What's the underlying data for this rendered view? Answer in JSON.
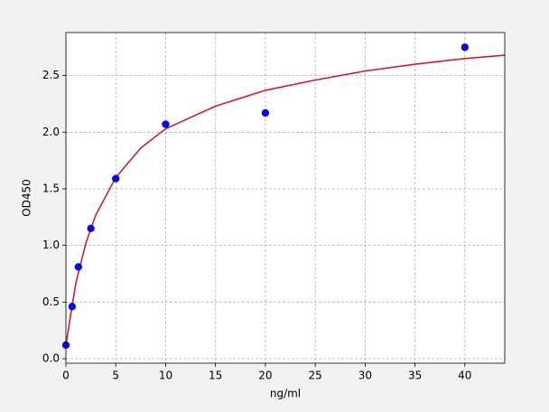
{
  "chart_data": {
    "type": "scatter",
    "xlabel": "ng/ml",
    "ylabel": "OD450",
    "xlim": [
      0,
      44
    ],
    "ylim": [
      -0.04,
      2.88
    ],
    "xticks": [
      0,
      5,
      10,
      15,
      20,
      25,
      30,
      35,
      40
    ],
    "yticks": [
      {
        "value": 0,
        "label": "0.0"
      },
      0.5,
      {
        "value": 1,
        "label": "1.0"
      },
      1.5,
      {
        "value": 2,
        "label": "2.0"
      },
      2.5
    ],
    "grid": true,
    "series": [
      {
        "type": "line",
        "color": "#c8202a",
        "x": [
          0,
          0.5,
          1,
          2,
          3,
          5,
          7.5,
          10,
          15,
          20,
          25,
          30,
          35,
          40,
          44
        ],
        "values": [
          0.12,
          0.4,
          0.67,
          1.02,
          1.27,
          1.6,
          1.86,
          2.03,
          2.23,
          2.37,
          2.46,
          2.54,
          2.6,
          2.65,
          2.68
        ]
      },
      {
        "type": "scatter",
        "color": "#0a0adc",
        "x": [
          0,
          0.625,
          1.25,
          2.5,
          5,
          10,
          20,
          40
        ],
        "values": [
          0.12,
          0.46,
          0.81,
          1.15,
          1.59,
          2.07,
          2.17,
          2.75
        ]
      }
    ]
  }
}
